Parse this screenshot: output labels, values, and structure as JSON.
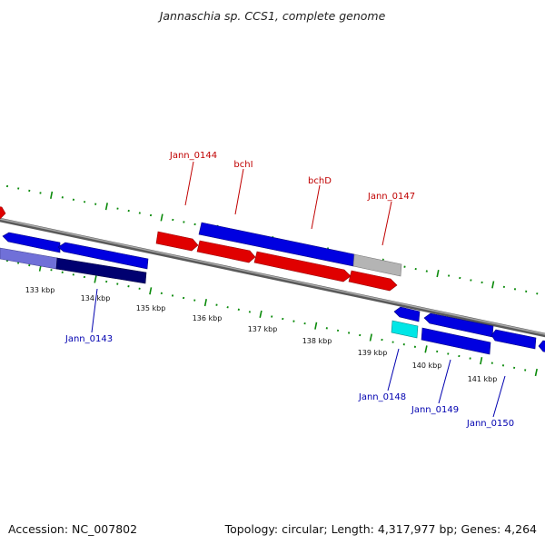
{
  "title": "Jannaschia sp. CCS1, complete genome",
  "footer": {
    "accession": "Accession: NC_007802",
    "summary": "Topology: circular; Length: 4,317,977 bp; Genes: 4,264"
  },
  "colors": {
    "forward_gene": "#e00000",
    "reverse_gene": "#0000e0",
    "pseudo_gene": "#b4b4b4",
    "highlight_gene": "#00e6e6",
    "dark_gene": "#000070",
    "light_gene": "#7070d8",
    "backbone": "#808080",
    "tick": "#0a8a0a",
    "forward_label": "#c00000",
    "reverse_label": "#0000b0"
  },
  "scale_labels": [
    "133 kbp",
    "134 kbp",
    "135 kbp",
    "136 kbp",
    "137 kbp",
    "138 kbp",
    "139 kbp",
    "140 kbp",
    "141 kbp"
  ],
  "top_labels": [
    {
      "text": "Jann_0144"
    },
    {
      "text": "bchI"
    },
    {
      "text": "bchD"
    },
    {
      "text": "Jann_0147"
    }
  ],
  "bottom_labels": [
    {
      "text": "Jann_0143"
    },
    {
      "text": "Jann_0148"
    },
    {
      "text": "Jann_0149"
    },
    {
      "text": "Jann_0150"
    }
  ]
}
